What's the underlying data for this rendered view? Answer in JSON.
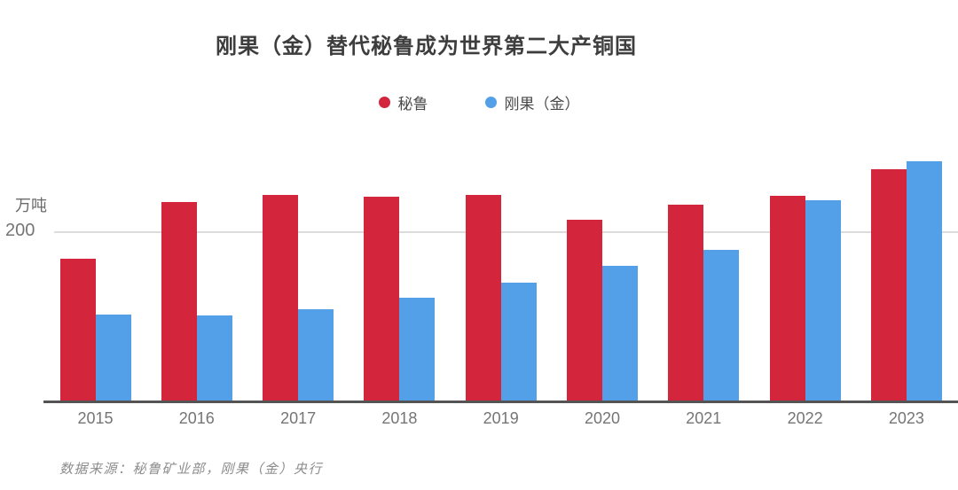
{
  "title": "刚果（金）替代秘鲁成为世界第二大产铜国",
  "legend": {
    "items": [
      {
        "key": "peru",
        "label": "秘鲁",
        "color": "#d3253c"
      },
      {
        "key": "drc",
        "label": "刚果（金）",
        "color": "#54a0e8"
      }
    ]
  },
  "y_axis": {
    "unit_label": "万吨",
    "tick_label": "200",
    "tick_value": 200
  },
  "source": "数据来源：秘鲁矿业部，刚果（金）央行",
  "chart_data": {
    "type": "bar",
    "title": "刚果（金）替代秘鲁成为世界第二大产铜国",
    "categories": [
      "2015",
      "2016",
      "2017",
      "2018",
      "2019",
      "2020",
      "2021",
      "2022",
      "2023"
    ],
    "series": [
      {
        "key": "peru",
        "name": "秘鲁",
        "color": "#d3253c",
        "values": [
          169,
          235,
          244,
          242,
          244,
          215,
          232,
          243,
          274
        ]
      },
      {
        "key": "drc",
        "name": "刚果（金）",
        "color": "#54a0e8",
        "values": [
          103,
          102,
          109,
          123,
          141,
          160,
          179,
          238,
          283
        ]
      }
    ],
    "xlabel": "",
    "ylabel": "万吨",
    "ylim": [
      0,
      300
    ],
    "gridlines": [
      200
    ],
    "grid": "single-horizontal",
    "legend_position": "top-center"
  }
}
